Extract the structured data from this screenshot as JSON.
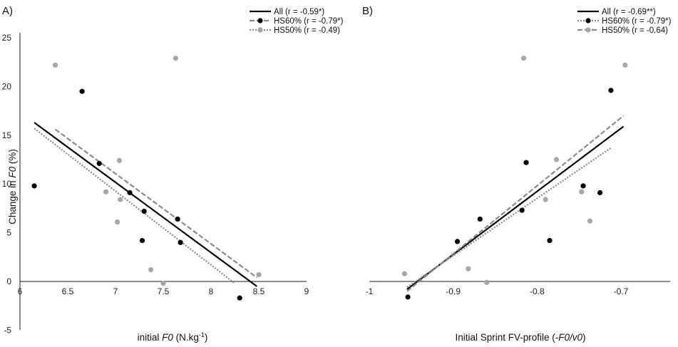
{
  "charts": [
    {
      "panel_label": "A)",
      "ylabel_prefix": "Change in ",
      "ylabel_italic": "F0",
      "ylabel_suffix": " (%)",
      "xlabel_prefix": "initial ",
      "xlabel_italic": "F0",
      "xlabel_suffix": " (N.kg",
      "xlabel_sup": "-1",
      "xlabel_end": ")",
      "legend": [
        {
          "label": "All (r = -0.59*)"
        },
        {
          "label": "HS60% (r = -0.79*)"
        },
        {
          "label": "HS50% (r = -0.49)"
        }
      ]
    },
    {
      "panel_label": "B)",
      "xlabel_prefix": "Initial Sprint FV-profile (-",
      "xlabel_italic": "F0/v0",
      "xlabel_end": ")",
      "legend": [
        {
          "label": "All (r = -0.69**)"
        },
        {
          "label": "HS60% (r = -0.79*)"
        },
        {
          "label": "HS50% (r = -0.64)"
        }
      ]
    }
  ],
  "chart_data": [
    {
      "type": "scatter",
      "xlim": [
        6,
        9
      ],
      "ylim": [
        -5,
        25
      ],
      "x_ticks": [
        "6",
        "6.5",
        "7",
        "7.5",
        "8",
        "8.5",
        "9"
      ],
      "y_ticks": [
        "-5",
        "0",
        "5",
        "10",
        "15",
        "20",
        "25"
      ],
      "series": [
        {
          "name": "HS60%",
          "color": "#000000",
          "points": [
            [
              6.15,
              9.8
            ],
            [
              6.65,
              19.5
            ],
            [
              6.83,
              12.1
            ],
            [
              7.15,
              9.1
            ],
            [
              7.28,
              4.2
            ],
            [
              7.3,
              7.2
            ],
            [
              7.65,
              6.4
            ],
            [
              7.68,
              4.0
            ],
            [
              8.3,
              -1.7
            ]
          ]
        },
        {
          "name": "HS50%",
          "color": "#a6a6a6",
          "points": [
            [
              6.37,
              22.2
            ],
            [
              6.9,
              9.2
            ],
            [
              7.02,
              6.1
            ],
            [
              7.04,
              12.4
            ],
            [
              7.05,
              8.4
            ],
            [
              7.37,
              1.2
            ],
            [
              7.5,
              -0.2
            ],
            [
              7.63,
              22.9
            ],
            [
              8.5,
              0.7
            ]
          ]
        }
      ],
      "trendlines": [
        {
          "name": "All",
          "style": "solid",
          "color": "#000000",
          "from": [
            6.15,
            16.3
          ],
          "to": [
            8.48,
            -0.5
          ]
        },
        {
          "name": "HS60%",
          "style": "dashed",
          "color": "#8a8a8a",
          "from": [
            6.37,
            15.6
          ],
          "to": [
            8.48,
            0.4
          ]
        },
        {
          "name": "HS50%",
          "style": "dotted",
          "color": "#8a8a8a",
          "from": [
            6.15,
            15.7
          ],
          "to": [
            8.25,
            -0.2
          ]
        }
      ],
      "grid": false,
      "legend_position": "top-right"
    },
    {
      "type": "scatter",
      "xlim": [
        -1,
        -0.7
      ],
      "ylim": [
        -5,
        25
      ],
      "x_ticks": [
        "-1",
        "-0.9",
        "-0.8",
        "-0.7"
      ],
      "series": [
        {
          "name": "HS60%",
          "color": "#000000",
          "points": [
            [
              -0.954,
              -1.6
            ],
            [
              -0.895,
              4.1
            ],
            [
              -0.868,
              6.4
            ],
            [
              -0.818,
              7.3
            ],
            [
              -0.813,
              12.2
            ],
            [
              -0.785,
              4.2
            ],
            [
              -0.745,
              9.8
            ],
            [
              -0.725,
              9.1
            ],
            [
              -0.712,
              19.6
            ]
          ]
        },
        {
          "name": "HS50%",
          "color": "#a6a6a6",
          "points": [
            [
              -0.958,
              0.8
            ],
            [
              -0.882,
              1.3
            ],
            [
              -0.86,
              -0.1
            ],
            [
              -0.816,
              22.9
            ],
            [
              -0.777,
              12.5
            ],
            [
              -0.79,
              8.4
            ],
            [
              -0.747,
              9.2
            ],
            [
              -0.737,
              6.2
            ],
            [
              -0.695,
              22.2
            ]
          ]
        }
      ],
      "trendlines": [
        {
          "name": "All",
          "style": "solid",
          "color": "#000000",
          "from": [
            -0.955,
            -0.8
          ],
          "to": [
            -0.697,
            15.9
          ]
        },
        {
          "name": "HS60%",
          "style": "dashed",
          "color": "#8a8a8a",
          "from": [
            -0.955,
            -1.0
          ],
          "to": [
            -0.697,
            17.0
          ]
        },
        {
          "name": "HS50%",
          "style": "dotted",
          "color": "#8a8a8a",
          "from": [
            -0.955,
            -0.6
          ],
          "to": [
            -0.712,
            13.7
          ]
        }
      ],
      "grid": false,
      "legend_position": "top-right"
    }
  ]
}
